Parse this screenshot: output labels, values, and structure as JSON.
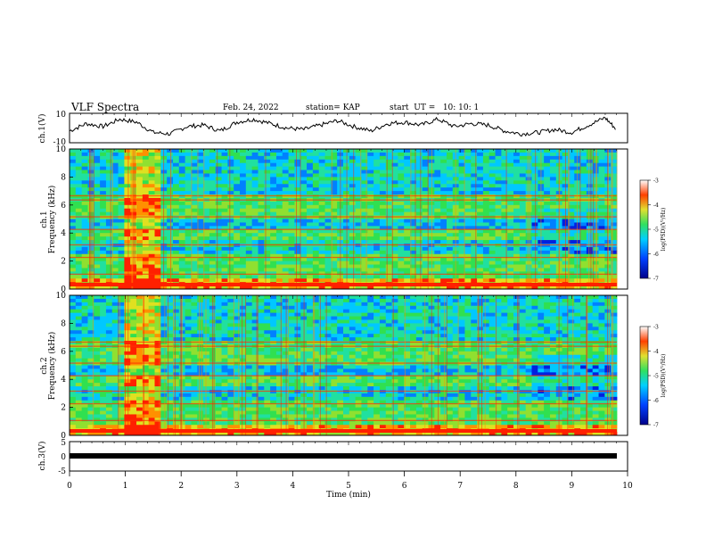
{
  "header": {
    "title": "VLF Spectra",
    "date": "Feb. 24, 2022",
    "station": "station= KAP",
    "start": "start  UT =   10: 10: 1"
  },
  "chart_data": [
    {
      "type": "line",
      "panel": "ch1-waveform",
      "ylabel": "ch.1(V)",
      "ylim": [
        -10,
        10
      ],
      "yticks": [
        "10",
        "-10"
      ],
      "xlim": [
        0,
        10
      ],
      "series": [
        {
          "x": [
            0,
            0.3,
            0.6,
            0.9,
            1.2,
            1.5,
            1.8,
            2.1,
            2.4,
            2.7,
            3.0,
            3.3,
            3.6,
            3.9,
            4.2,
            4.5,
            4.8,
            5.1,
            5.4,
            5.7,
            6.0,
            6.3,
            6.6,
            6.9,
            7.2,
            7.5,
            7.8,
            8.1,
            8.4,
            8.7,
            9.0,
            9.3,
            9.6,
            9.8
          ],
          "y": [
            -2,
            3,
            1,
            6,
            4,
            -3,
            -4,
            1,
            2,
            -2,
            4,
            6,
            3,
            0,
            -1,
            2,
            5,
            1,
            -2,
            3,
            4,
            2,
            6,
            1,
            3,
            2,
            -2,
            -4,
            -3,
            -1,
            -3,
            2,
            7,
            -1
          ]
        }
      ]
    },
    {
      "type": "heatmap",
      "panel": "ch1-spectrogram",
      "ylabel": "ch.1\nFrequency (kHz)",
      "xlim": [
        0,
        10
      ],
      "ylim": [
        0,
        10
      ],
      "yticks": [
        "0",
        "2",
        "4",
        "6",
        "8",
        "10"
      ],
      "colorbar": {
        "label": "log(PSD)(V²/Hz)",
        "min": -7,
        "max": -3,
        "ticks": [
          "-3",
          "-4",
          "-5",
          "-6",
          "-7"
        ]
      }
    },
    {
      "type": "heatmap",
      "panel": "ch2-spectrogram",
      "ylabel": "ch.2\nFrequency (kHz)",
      "xlim": [
        0,
        10
      ],
      "ylim": [
        0,
        10
      ],
      "yticks": [
        "0",
        "2",
        "4",
        "6",
        "8",
        "10"
      ],
      "colorbar": {
        "label": "log(PSD)(V²/Hz)",
        "min": -7,
        "max": -3,
        "ticks": [
          "-3",
          "-4",
          "-5",
          "-6",
          "-7"
        ]
      }
    },
    {
      "type": "line",
      "panel": "ch3-waveform",
      "ylabel": "ch.3(V)",
      "ylim": [
        -5,
        5
      ],
      "yticks": [
        "5",
        "0",
        "-5"
      ],
      "xlim": [
        0,
        10
      ],
      "xlabel": "Time (min)",
      "xticks": [
        "0",
        "1",
        "2",
        "3",
        "4",
        "5",
        "6",
        "7",
        "8",
        "9",
        "10"
      ],
      "series": [
        {
          "x": [
            0,
            9.8
          ],
          "y": [
            -1,
            -1
          ]
        }
      ]
    }
  ],
  "colors": {
    "low": "#00008b",
    "mid": "#22d070",
    "high": "#ff2000",
    "max": "#ff0000"
  }
}
